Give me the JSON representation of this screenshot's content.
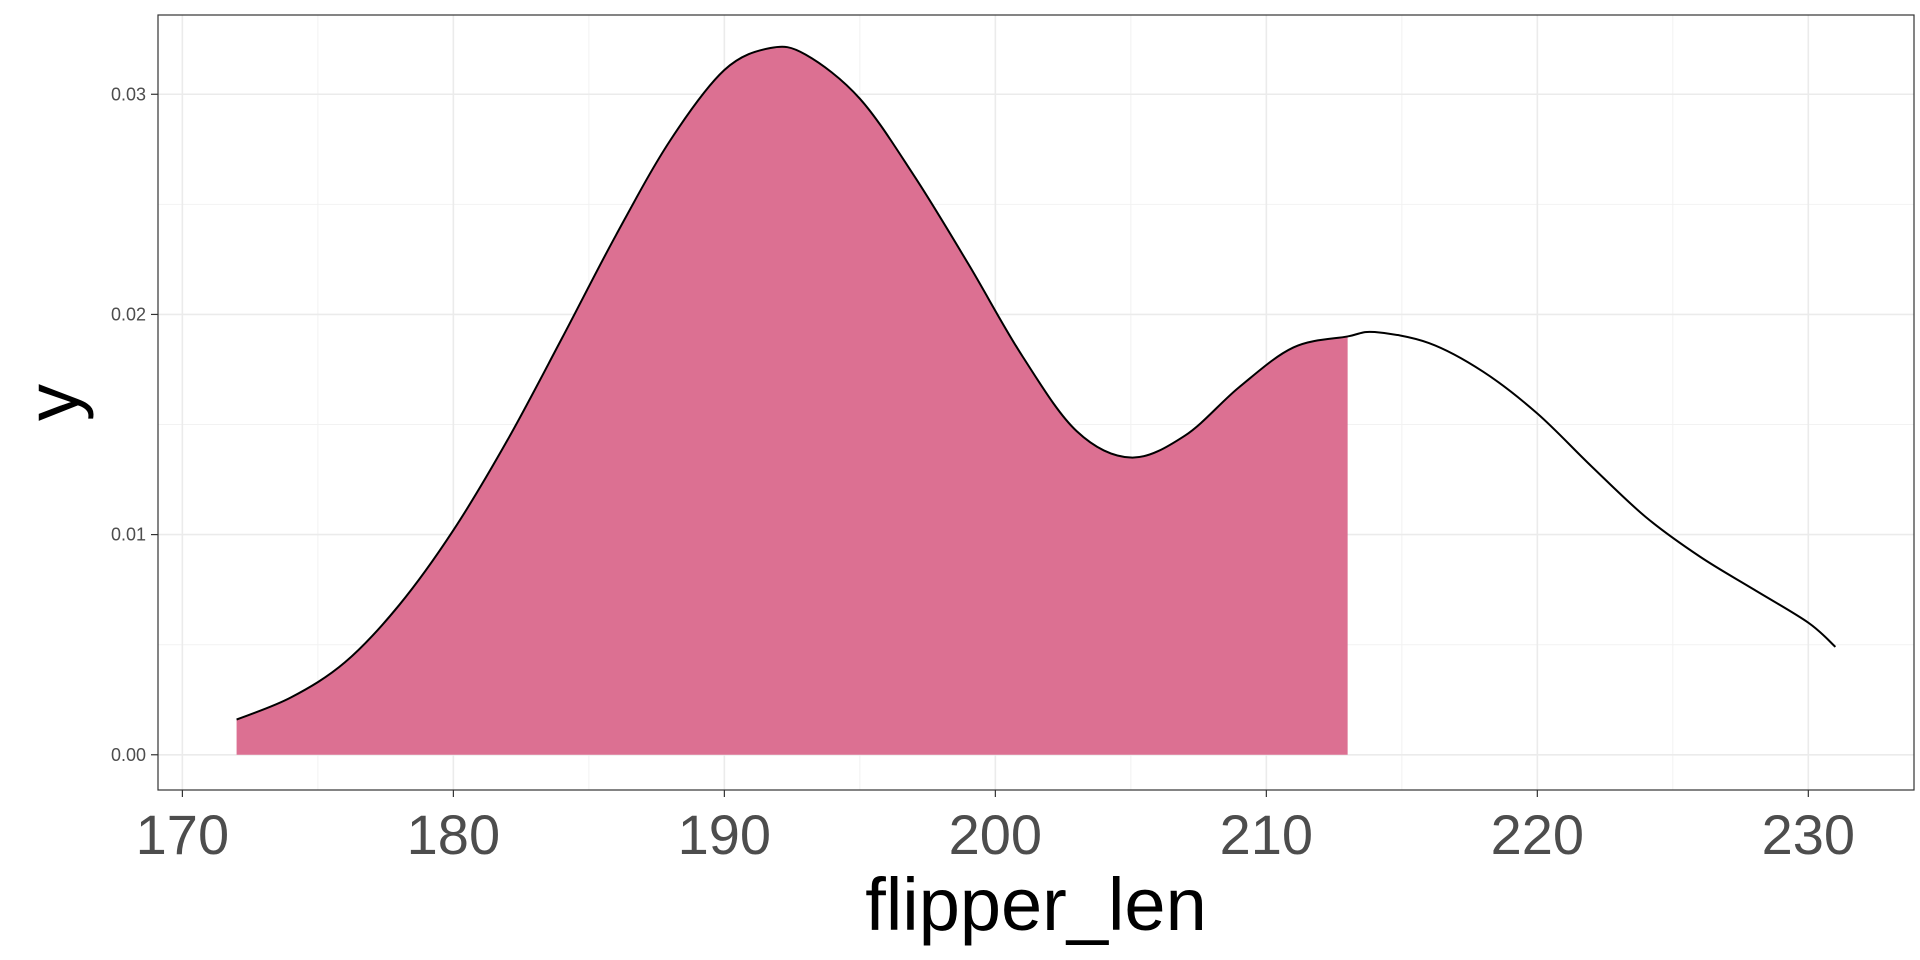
{
  "chart_data": {
    "type": "area",
    "xlabel": "flipper_len",
    "ylabel": "y",
    "xlim": [
      169.1,
      233.9
    ],
    "ylim": [
      -0.0016,
      0.0336
    ],
    "x_ticks": [
      170,
      180,
      190,
      200,
      210,
      220,
      230
    ],
    "x_tick_labels": [
      "170",
      "180",
      "190",
      "200",
      "210",
      "220",
      "230"
    ],
    "x_minor_ticks": [
      175,
      185,
      195,
      205,
      215,
      225
    ],
    "y_ticks": [
      0,
      0.01,
      0.02,
      0.03
    ],
    "y_tick_labels": [
      "0.00",
      "0.01",
      "0.02",
      "0.03"
    ],
    "y_minor_ticks": [
      0.005,
      0.015,
      0.025
    ],
    "grid": true,
    "fill_color": "#dc7092",
    "line_color": "#000000",
    "shaded_range": [
      172,
      213
    ],
    "series": [
      {
        "x": [
          172,
          174,
          176,
          178,
          180,
          182,
          184,
          186,
          188,
          190,
          191.7,
          193,
          195,
          197,
          199,
          201,
          203,
          205,
          207,
          209,
          211,
          213,
          214,
          216,
          218,
          220,
          222,
          224,
          226,
          228,
          230,
          231
        ],
        "y": [
          0.0016,
          0.0026,
          0.0042,
          0.0068,
          0.0102,
          0.0143,
          0.0189,
          0.0236,
          0.0279,
          0.0311,
          0.0321,
          0.0318,
          0.0298,
          0.0263,
          0.0223,
          0.0181,
          0.0147,
          0.0135,
          0.0145,
          0.0167,
          0.0185,
          0.019,
          0.0192,
          0.0187,
          0.0174,
          0.0155,
          0.0131,
          0.0108,
          0.009,
          0.0075,
          0.006,
          0.0049
        ]
      }
    ]
  }
}
